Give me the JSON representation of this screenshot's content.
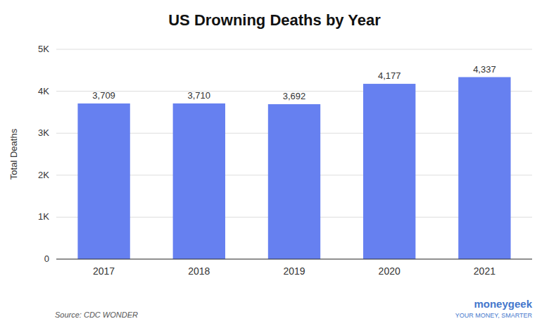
{
  "chart_data": {
    "type": "bar",
    "title": "US Drowning Deaths by Year",
    "categories": [
      "2017",
      "2018",
      "2019",
      "2020",
      "2021"
    ],
    "values": [
      3709,
      3710,
      3692,
      4177,
      4337
    ],
    "value_labels": [
      "3,709",
      "3,710",
      "3,692",
      "4,177",
      "4,337"
    ],
    "data_labels": true,
    "color": "#6680f0",
    "ylabel": "Total Deaths",
    "ylim": [
      0,
      5000
    ],
    "yticks": [
      0,
      {
        "value": 1000,
        "label": "1K"
      },
      {
        "value": 2000,
        "label": "2K"
      },
      {
        "value": 3000,
        "label": "3K"
      },
      {
        "value": 4000,
        "label": "4K"
      },
      {
        "value": 5000,
        "label": "5K"
      }
    ],
    "grid": true,
    "annotations": [
      "Source: CDC WONDER",
      "moneygeek",
      "YOUR MONEY, SMARTER"
    ]
  }
}
